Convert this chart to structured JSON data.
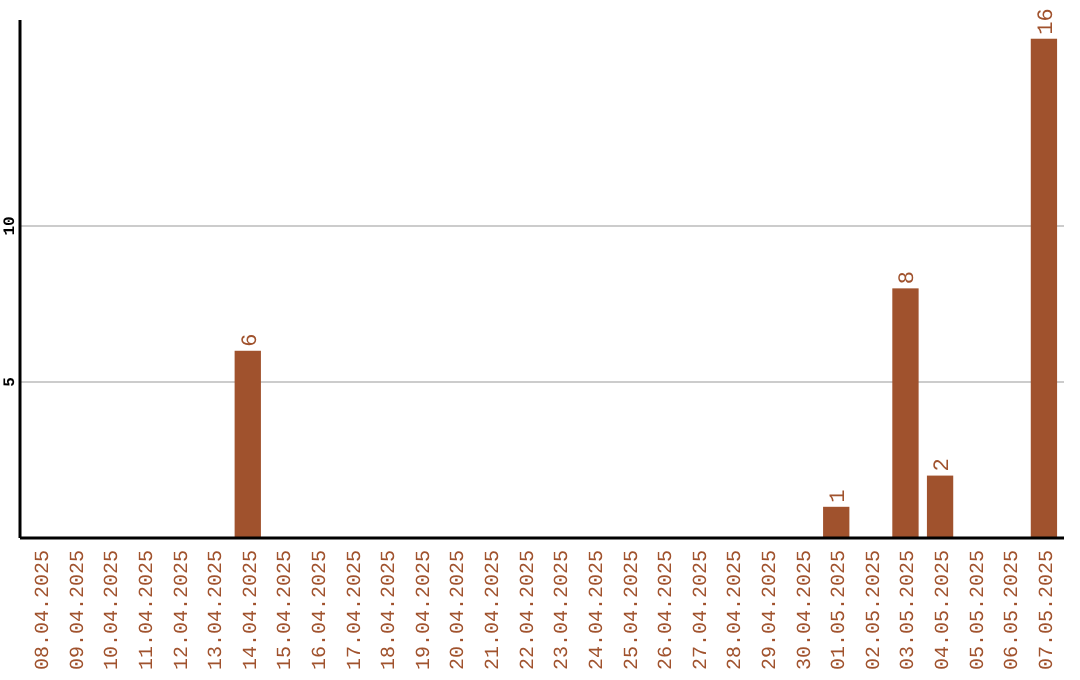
{
  "chart_data": {
    "type": "bar",
    "categories": [
      "08.04.2025",
      "09.04.2025",
      "10.04.2025",
      "11.04.2025",
      "12.04.2025",
      "13.04.2025",
      "14.04.2025",
      "15.04.2025",
      "16.04.2025",
      "17.04.2025",
      "18.04.2025",
      "19.04.2025",
      "20.04.2025",
      "21.04.2025",
      "22.04.2025",
      "23.04.2025",
      "24.04.2025",
      "25.04.2025",
      "26.04.2025",
      "27.04.2025",
      "28.04.2025",
      "29.04.2025",
      "30.04.2025",
      "01.05.2025",
      "02.05.2025",
      "03.05.2025",
      "04.05.2025",
      "05.05.2025",
      "06.05.2025",
      "07.05.2025"
    ],
    "values": [
      0,
      0,
      0,
      0,
      0,
      0,
      6,
      0,
      0,
      0,
      0,
      0,
      0,
      0,
      0,
      0,
      0,
      0,
      0,
      0,
      0,
      0,
      0,
      1,
      0,
      8,
      2,
      0,
      0,
      16
    ],
    "value_labels": [
      null,
      null,
      null,
      null,
      null,
      null,
      "6",
      null,
      null,
      null,
      null,
      null,
      null,
      null,
      null,
      null,
      null,
      null,
      null,
      null,
      null,
      null,
      null,
      "1",
      null,
      "8",
      "2",
      null,
      null,
      "16"
    ],
    "color": "#a0522d",
    "ylim": [
      0,
      16.6
    ],
    "yticks": [
      5,
      10
    ],
    "grid": "y"
  }
}
